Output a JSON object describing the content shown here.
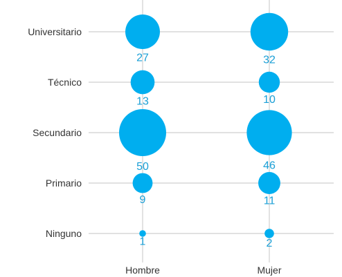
{
  "chart_data": {
    "type": "scatter",
    "title": "",
    "xlabel": "",
    "ylabel": "",
    "x_categories": [
      "Hombre",
      "Mujer"
    ],
    "y_categories": [
      "Universitario",
      "Técnico",
      "Secundario",
      "Primario",
      "Ninguno"
    ],
    "points": [
      {
        "x": "Hombre",
        "y": "Universitario",
        "value": 27
      },
      {
        "x": "Hombre",
        "y": "Técnico",
        "value": 13
      },
      {
        "x": "Hombre",
        "y": "Secundario",
        "value": 50
      },
      {
        "x": "Hombre",
        "y": "Primario",
        "value": 9
      },
      {
        "x": "Hombre",
        "y": "Ninguno",
        "value": 1
      },
      {
        "x": "Mujer",
        "y": "Universitario",
        "value": 32
      },
      {
        "x": "Mujer",
        "y": "Técnico",
        "value": 10
      },
      {
        "x": "Mujer",
        "y": "Secundario",
        "value": 46
      },
      {
        "x": "Mujer",
        "y": "Primario",
        "value": 11
      },
      {
        "x": "Mujer",
        "y": "Ninguno",
        "value": 2
      }
    ],
    "bubble_color": "#00AEEF",
    "label_color": "#1A9FD6",
    "grid": true,
    "legend": "none"
  }
}
